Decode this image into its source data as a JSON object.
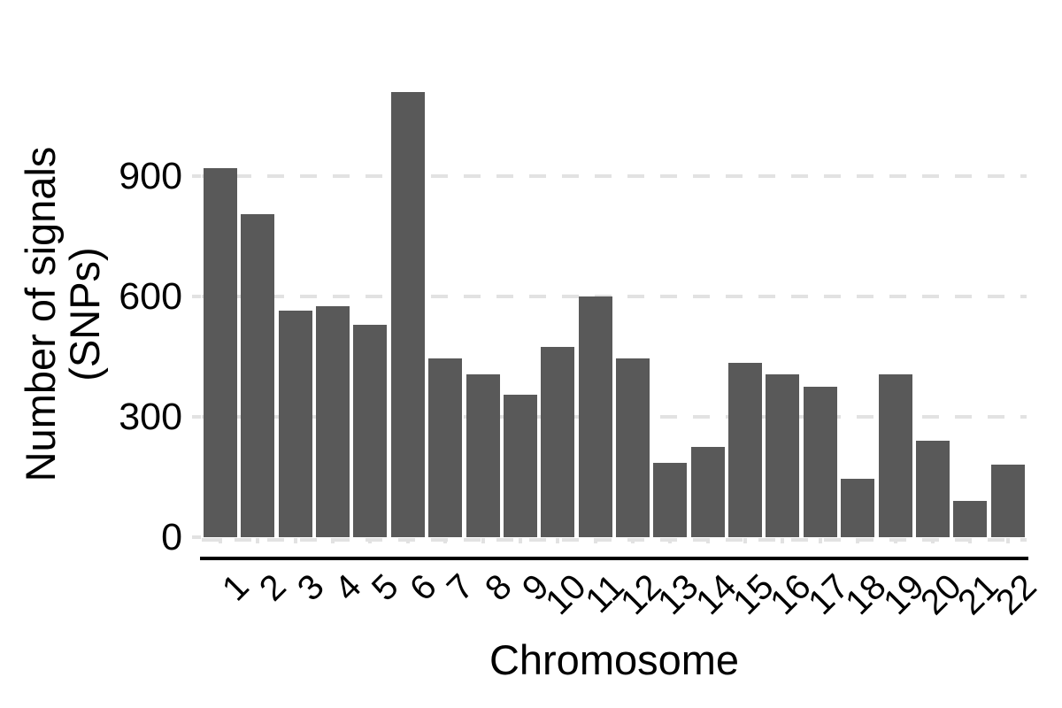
{
  "figure": {
    "background": "#ffffff",
    "bar_color": "#595959",
    "gridline_color": "#e2e2e2",
    "tick_color": "#e2e2e2",
    "axis_line_color": "#000000",
    "text_color": "#000000"
  },
  "chart_data": {
    "type": "bar",
    "title": "",
    "xlabel": "Chromosome",
    "ylabel_line1": "Number of signals",
    "ylabel_line2": "(SNPs)",
    "categories": [
      "1",
      "2",
      "3",
      "4",
      "5",
      "6",
      "7",
      "8",
      "9",
      "10",
      "11",
      "12",
      "13",
      "14",
      "15",
      "16",
      "17",
      "18",
      "19",
      "20",
      "21",
      "22"
    ],
    "values": [
      920,
      805,
      565,
      575,
      530,
      1110,
      445,
      405,
      355,
      475,
      600,
      445,
      185,
      225,
      435,
      405,
      375,
      145,
      405,
      240,
      90,
      180
    ],
    "yticks": [
      0,
      300,
      600,
      900
    ],
    "ytick_labels": [
      "0",
      "300",
      "600",
      "900"
    ],
    "ylim": [
      0,
      1167
    ],
    "grid": "horizontal-dashed",
    "legend": "none",
    "x_tick_rotation_deg": 45,
    "series_name": "Number of signals (SNPs)"
  }
}
